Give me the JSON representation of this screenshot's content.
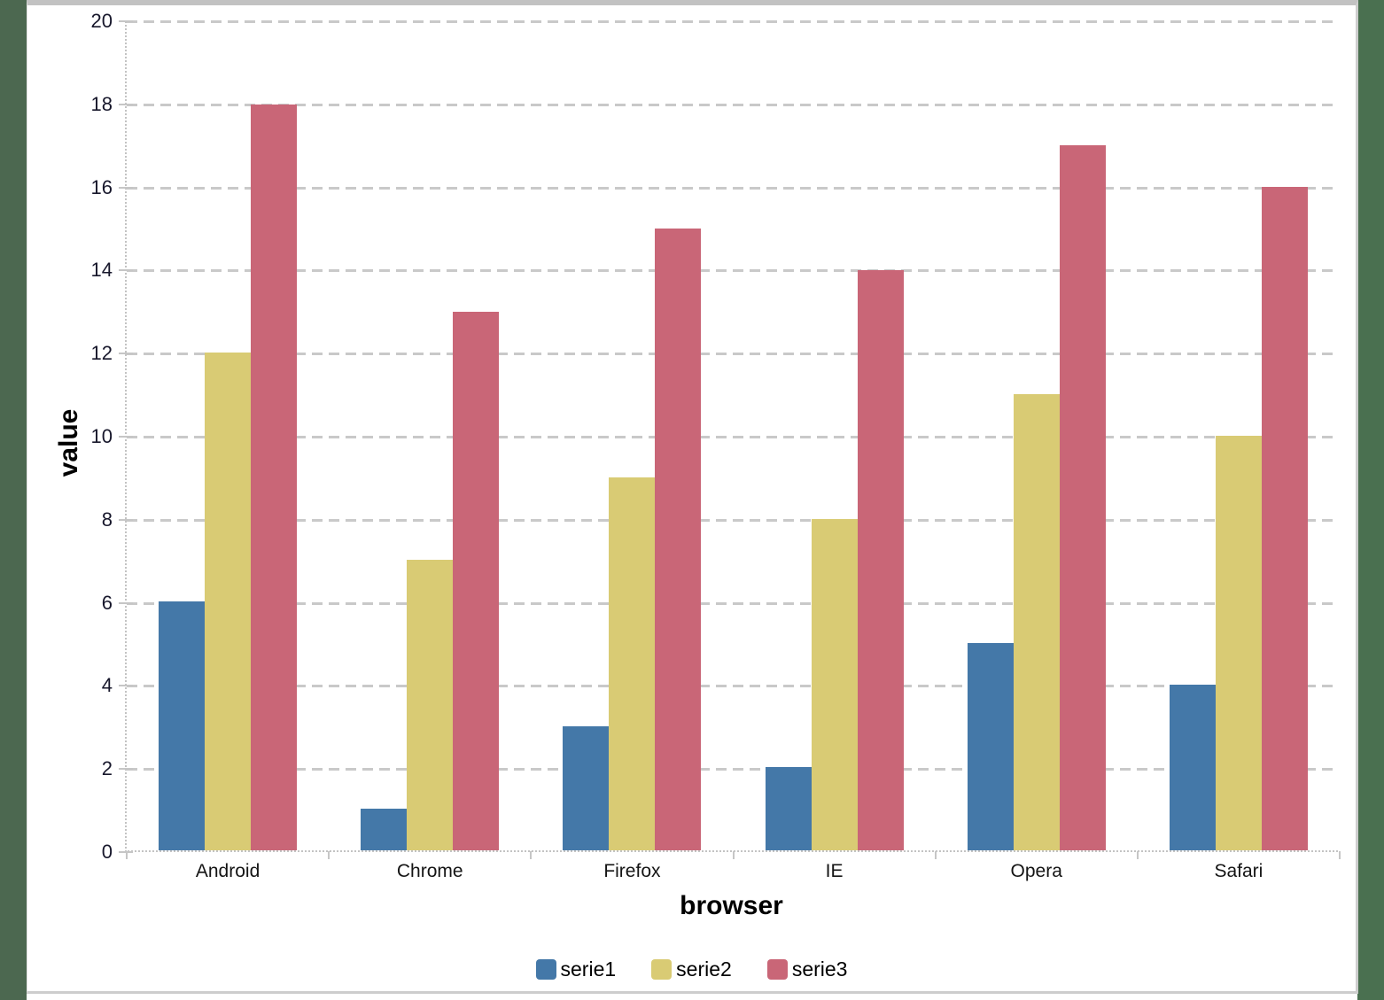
{
  "window": {
    "background_color": "#4a7050",
    "frame_top_color": "#c2c2c2",
    "card_background": "#ffffff"
  },
  "chart_data": {
    "type": "bar",
    "title": "",
    "xlabel": "browser",
    "ylabel": "value",
    "categories": [
      "Android",
      "Chrome",
      "Firefox",
      "IE",
      "Opera",
      "Safari"
    ],
    "series": [
      {
        "name": "serie1",
        "color": "#4478a8",
        "values": [
          6,
          1,
          3,
          2,
          5,
          4
        ]
      },
      {
        "name": "serie2",
        "color": "#d9cb74",
        "values": [
          12,
          7,
          9,
          8,
          11,
          10
        ]
      },
      {
        "name": "serie3",
        "color": "#c96677",
        "values": [
          18,
          13,
          15,
          14,
          17,
          16
        ]
      }
    ],
    "ylim": [
      0,
      20
    ],
    "yticks": [
      0,
      2,
      4,
      6,
      8,
      10,
      12,
      14,
      16,
      18,
      20
    ],
    "grid": "horizontal-dashed",
    "gridline_color": "#c9c9c9",
    "axis_style": "dotted-gray",
    "legend_position": "bottom"
  }
}
